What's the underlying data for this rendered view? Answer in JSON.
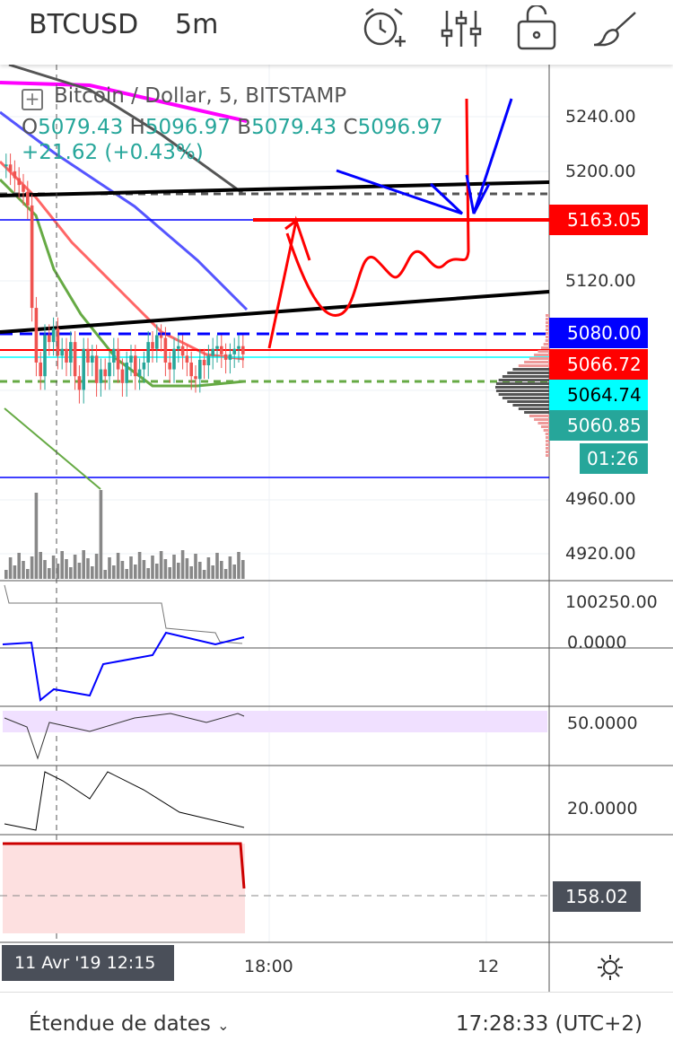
{
  "header": {
    "symbol": "BTCUSD",
    "interval": "5m",
    "icons": [
      "alarm-add-icon",
      "indicators-icon",
      "lock-icon",
      "drawing-brush-icon"
    ]
  },
  "legend": {
    "title": "Bitcoin / Dollar, 5, BITSTAMP",
    "open_k": "O",
    "open": "5079.43",
    "high_k": "H",
    "high": "5096.97",
    "low_k": "B",
    "low": "5079.43",
    "close_k": "C",
    "close": "5096.97",
    "change": "+21.62 (+0.43%)"
  },
  "price_axis": {
    "ticks": [
      "5240.00",
      "5200.00",
      "5120.00",
      "4960.00",
      "4920.00"
    ],
    "tags": [
      {
        "label": "5163.05",
        "color": "#ff0000",
        "text": "#ffffff"
      },
      {
        "label": "5080.00",
        "color": "#0000ff",
        "text": "#ffffff"
      },
      {
        "label": "5066.72",
        "color": "#ff0000",
        "text": "#ffffff"
      },
      {
        "label": "5064.74",
        "color": "#00ffff",
        "text": "#000000"
      },
      {
        "label": "5060.85",
        "color": "#26a69a",
        "text": "#ffffff"
      }
    ],
    "countdown": "01:26"
  },
  "panes": {
    "obv": "100250.00",
    "macd": "0.0000",
    "rsi": "50.0000",
    "adx": "20.0000",
    "last": "158.02"
  },
  "time_axis": {
    "crosshair": "11 Avr '19    12:15",
    "ticks": [
      "18:00",
      "12"
    ]
  },
  "footer": {
    "range_label": "Étendue de dates",
    "range_chevron": "chevron-down-icon",
    "clock": "17:28:33 (UTC+2)",
    "settings_icon": "gear-icon"
  },
  "chart_data": {
    "type": "candlestick",
    "closes": [
      5205,
      5200,
      5195,
      5190,
      5185,
      5175,
      5100,
      5060,
      5050,
      5080,
      5075,
      5085,
      5065,
      5070,
      5060,
      5075,
      5050,
      5040,
      5070,
      5060,
      5065,
      5045,
      5055,
      5050,
      5060,
      5070,
      5055,
      5045,
      5060,
      5065,
      5050,
      5055,
      5060,
      5075,
      5070,
      5080,
      5078,
      5060,
      5055,
      5070,
      5072,
      5065,
      5060,
      5050,
      5048,
      5062,
      5058,
      5065,
      5070,
      5072,
      5066,
      5062,
      5066,
      5070,
      5072,
      5066
    ],
    "colors": {
      "up": "#26a69a",
      "down": "#ef5350"
    }
  }
}
